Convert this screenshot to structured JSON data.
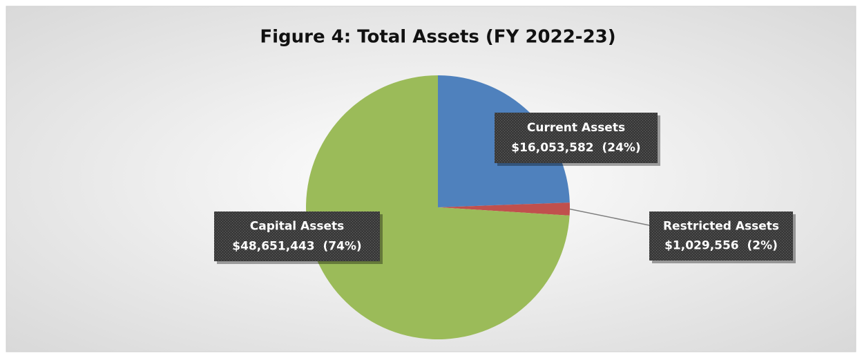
{
  "chart_data": {
    "type": "pie",
    "title": "Figure 4: Total Assets (FY 2022-23)",
    "categories": [
      "Current Assets",
      "Restricted Assets",
      "Capital Assets"
    ],
    "values": [
      16053582,
      1029556,
      48651443
    ],
    "value_labels": [
      "$16,053,582  (24%)",
      "$1,029,556  (2%)",
      "$48,651,443  (74%)"
    ],
    "colors": [
      "#4f81bd",
      "#c0504d",
      "#9bbb59"
    ]
  }
}
